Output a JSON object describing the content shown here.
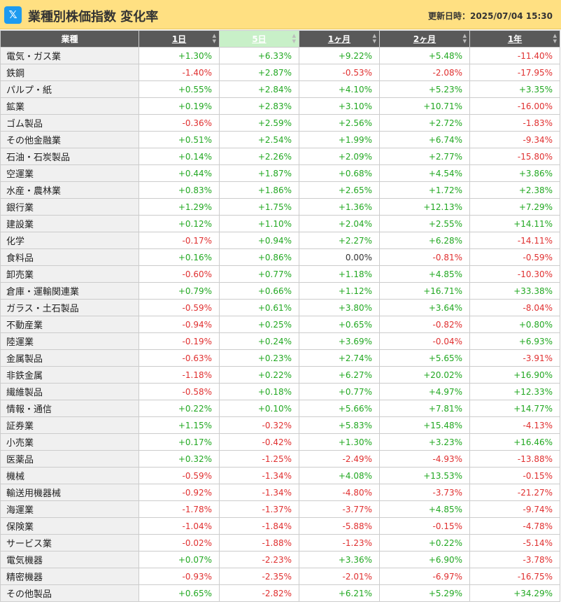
{
  "header": {
    "icon": "x-logo-icon",
    "icon_glyph": "𝕏",
    "title": "業種別株価指数 変化率",
    "updated": "更新日時：2025/07/04 15:30"
  },
  "colors": {
    "positive": "#22a822",
    "negative": "#e03030",
    "header_bg": "#ffe082",
    "active_column": "#c8f0c8"
  },
  "table": {
    "columns": [
      "業種",
      "1日",
      "5日",
      "1ヶ月",
      "2ヶ月",
      "1年"
    ],
    "sorted_column": "5日",
    "rows": [
      {
        "name": "電気・ガス業",
        "values": [
          "+1.30%",
          "+6.33%",
          "+9.22%",
          "+5.48%",
          "-11.40%"
        ]
      },
      {
        "name": "鉄鋼",
        "values": [
          "-1.40%",
          "+2.87%",
          "-0.53%",
          "-2.08%",
          "-17.95%"
        ]
      },
      {
        "name": "パルプ・紙",
        "values": [
          "+0.55%",
          "+2.84%",
          "+4.10%",
          "+5.23%",
          "+3.35%"
        ]
      },
      {
        "name": "鉱業",
        "values": [
          "+0.19%",
          "+2.83%",
          "+3.10%",
          "+10.71%",
          "-16.00%"
        ]
      },
      {
        "name": "ゴム製品",
        "values": [
          "-0.36%",
          "+2.59%",
          "+2.56%",
          "+2.72%",
          "-1.83%"
        ]
      },
      {
        "name": "その他金融業",
        "values": [
          "+0.51%",
          "+2.54%",
          "+1.99%",
          "+6.74%",
          "-9.34%"
        ]
      },
      {
        "name": "石油・石炭製品",
        "values": [
          "+0.14%",
          "+2.26%",
          "+2.09%",
          "+2.77%",
          "-15.80%"
        ]
      },
      {
        "name": "空運業",
        "values": [
          "+0.44%",
          "+1.87%",
          "+0.68%",
          "+4.54%",
          "+3.86%"
        ]
      },
      {
        "name": "水産・農林業",
        "values": [
          "+0.83%",
          "+1.86%",
          "+2.65%",
          "+1.72%",
          "+2.38%"
        ]
      },
      {
        "name": "銀行業",
        "values": [
          "+1.29%",
          "+1.75%",
          "+1.36%",
          "+12.13%",
          "+7.29%"
        ]
      },
      {
        "name": "建設業",
        "values": [
          "+0.12%",
          "+1.10%",
          "+2.04%",
          "+2.55%",
          "+14.11%"
        ]
      },
      {
        "name": "化学",
        "values": [
          "-0.17%",
          "+0.94%",
          "+2.27%",
          "+6.28%",
          "-14.11%"
        ]
      },
      {
        "name": "食料品",
        "values": [
          "+0.16%",
          "+0.86%",
          "0.00%",
          "-0.81%",
          "-0.59%"
        ]
      },
      {
        "name": "卸売業",
        "values": [
          "-0.60%",
          "+0.77%",
          "+1.18%",
          "+4.85%",
          "-10.30%"
        ]
      },
      {
        "name": "倉庫・運輸関連業",
        "values": [
          "+0.79%",
          "+0.66%",
          "+1.12%",
          "+16.71%",
          "+33.38%"
        ]
      },
      {
        "name": "ガラス・土石製品",
        "values": [
          "-0.59%",
          "+0.61%",
          "+3.80%",
          "+3.64%",
          "-8.04%"
        ]
      },
      {
        "name": "不動産業",
        "values": [
          "-0.94%",
          "+0.25%",
          "+0.65%",
          "-0.82%",
          "+0.80%"
        ]
      },
      {
        "name": "陸運業",
        "values": [
          "-0.19%",
          "+0.24%",
          "+3.69%",
          "-0.04%",
          "+6.93%"
        ]
      },
      {
        "name": "金属製品",
        "values": [
          "-0.63%",
          "+0.23%",
          "+2.74%",
          "+5.65%",
          "-3.91%"
        ]
      },
      {
        "name": "非鉄金属",
        "values": [
          "-1.18%",
          "+0.22%",
          "+6.27%",
          "+20.02%",
          "+16.90%"
        ]
      },
      {
        "name": "繊維製品",
        "values": [
          "-0.58%",
          "+0.18%",
          "+0.77%",
          "+4.97%",
          "+12.33%"
        ]
      },
      {
        "name": "情報・通信",
        "values": [
          "+0.22%",
          "+0.10%",
          "+5.66%",
          "+7.81%",
          "+14.77%"
        ]
      },
      {
        "name": "証券業",
        "values": [
          "+1.15%",
          "-0.32%",
          "+5.83%",
          "+15.48%",
          "-4.13%"
        ]
      },
      {
        "name": "小売業",
        "values": [
          "+0.17%",
          "-0.42%",
          "+1.30%",
          "+3.23%",
          "+16.46%"
        ]
      },
      {
        "name": "医薬品",
        "values": [
          "+0.32%",
          "-1.25%",
          "-2.49%",
          "-4.93%",
          "-13.88%"
        ]
      },
      {
        "name": "機械",
        "values": [
          "-0.59%",
          "-1.34%",
          "+4.08%",
          "+13.53%",
          "-0.15%"
        ]
      },
      {
        "name": "輸送用機器械",
        "values": [
          "-0.92%",
          "-1.34%",
          "-4.80%",
          "-3.73%",
          "-21.27%"
        ]
      },
      {
        "name": "海運業",
        "values": [
          "-1.78%",
          "-1.37%",
          "-3.77%",
          "+4.85%",
          "-9.74%"
        ]
      },
      {
        "name": "保険業",
        "values": [
          "-1.04%",
          "-1.84%",
          "-5.88%",
          "-0.15%",
          "-4.78%"
        ]
      },
      {
        "name": "サービス業",
        "values": [
          "-0.02%",
          "-1.88%",
          "-1.23%",
          "+0.22%",
          "-5.14%"
        ]
      },
      {
        "name": "電気機器",
        "values": [
          "+0.07%",
          "-2.23%",
          "+3.36%",
          "+6.90%",
          "-3.78%"
        ]
      },
      {
        "name": "精密機器",
        "values": [
          "-0.93%",
          "-2.35%",
          "-2.01%",
          "-6.97%",
          "-16.75%"
        ]
      },
      {
        "name": "その他製品",
        "values": [
          "+0.65%",
          "-2.82%",
          "+6.21%",
          "+5.29%",
          "+34.29%"
        ]
      }
    ]
  }
}
